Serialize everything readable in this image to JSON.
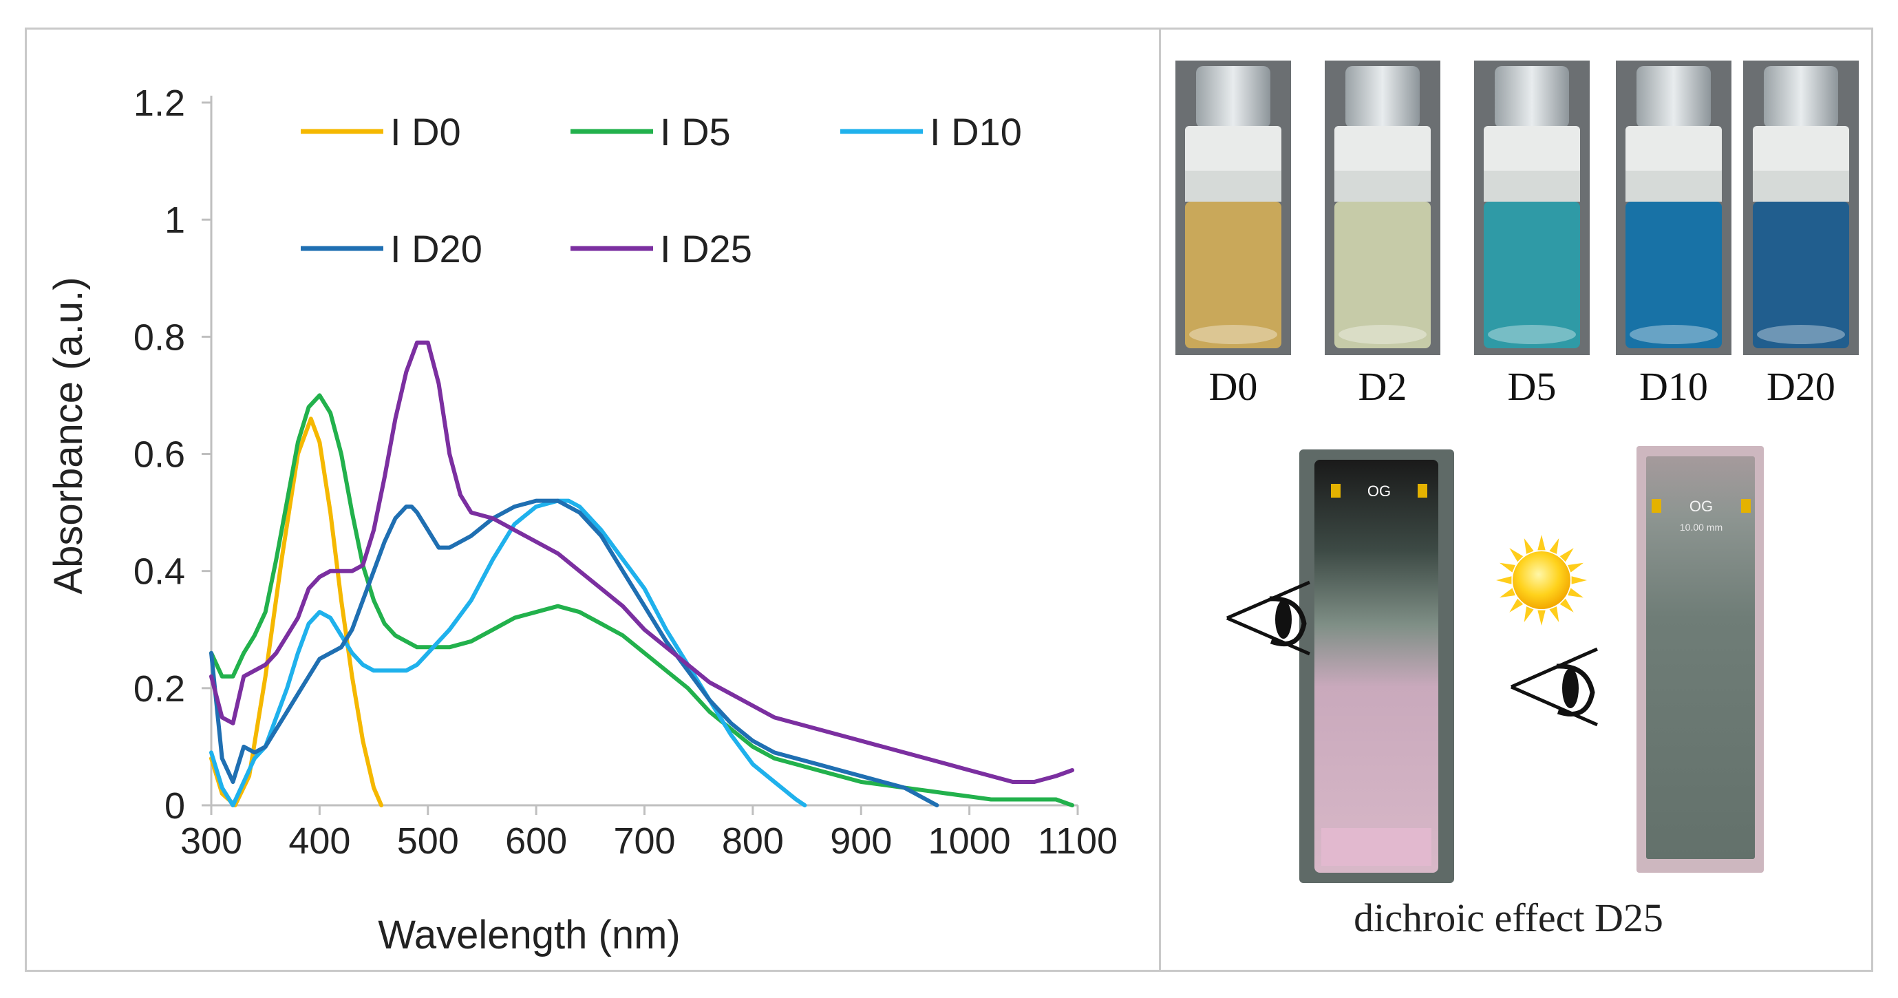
{
  "chart_data": {
    "type": "line",
    "title": "",
    "xlabel": "Wavelength (nm)",
    "ylabel": "Absorbance (a.u.)",
    "xlim": [
      300,
      1100
    ],
    "ylim": [
      0,
      1.2
    ],
    "x_ticks": [
      "300",
      "400",
      "500",
      "600",
      "700",
      "800",
      "900",
      "1000",
      "1100"
    ],
    "y_ticks": [
      "0",
      "0.2",
      "0.4",
      "0.6",
      "0.8",
      "1",
      "1.2"
    ],
    "grid": false,
    "legend": "inside, top",
    "series": [
      {
        "name": "I D0",
        "color": "#f5b800",
        "x": [
          300,
          310,
          322,
          335,
          350,
          365,
          380,
          392,
          400,
          410,
          420,
          430,
          440,
          450,
          457
        ],
        "y": [
          0.08,
          0.02,
          0.0,
          0.05,
          0.22,
          0.42,
          0.6,
          0.66,
          0.62,
          0.5,
          0.35,
          0.22,
          0.11,
          0.03,
          0.0
        ]
      },
      {
        "name": "I D5",
        "color": "#22b14c",
        "x": [
          300,
          310,
          320,
          330,
          340,
          350,
          360,
          370,
          380,
          390,
          400,
          410,
          420,
          430,
          440,
          450,
          460,
          470,
          480,
          490,
          500,
          520,
          540,
          560,
          580,
          600,
          620,
          640,
          660,
          680,
          700,
          720,
          740,
          760,
          780,
          800,
          820,
          840,
          860,
          880,
          900,
          920,
          940,
          960,
          980,
          1000,
          1020,
          1040,
          1060,
          1080,
          1095
        ],
        "y": [
          0.26,
          0.22,
          0.22,
          0.26,
          0.29,
          0.33,
          0.42,
          0.52,
          0.62,
          0.68,
          0.7,
          0.67,
          0.6,
          0.5,
          0.41,
          0.35,
          0.31,
          0.29,
          0.28,
          0.27,
          0.27,
          0.27,
          0.28,
          0.3,
          0.32,
          0.33,
          0.34,
          0.33,
          0.31,
          0.29,
          0.26,
          0.23,
          0.2,
          0.16,
          0.13,
          0.1,
          0.08,
          0.07,
          0.06,
          0.05,
          0.04,
          0.035,
          0.03,
          0.025,
          0.02,
          0.015,
          0.01,
          0.01,
          0.01,
          0.01,
          0.0
        ]
      },
      {
        "name": "I D10",
        "color": "#1fb1ec",
        "x": [
          300,
          310,
          320,
          330,
          340,
          350,
          360,
          370,
          380,
          390,
          400,
          410,
          420,
          430,
          440,
          450,
          460,
          470,
          480,
          490,
          500,
          520,
          540,
          560,
          580,
          600,
          620,
          630,
          640,
          660,
          680,
          700,
          720,
          740,
          760,
          780,
          800,
          820,
          840,
          848
        ],
        "y": [
          0.09,
          0.03,
          0.0,
          0.04,
          0.08,
          0.1,
          0.15,
          0.2,
          0.26,
          0.31,
          0.33,
          0.32,
          0.29,
          0.26,
          0.24,
          0.23,
          0.23,
          0.23,
          0.23,
          0.24,
          0.26,
          0.3,
          0.35,
          0.42,
          0.48,
          0.51,
          0.52,
          0.52,
          0.51,
          0.47,
          0.42,
          0.37,
          0.3,
          0.24,
          0.18,
          0.12,
          0.07,
          0.04,
          0.01,
          0.0
        ]
      },
      {
        "name": "I D20",
        "color": "#1f6fb2",
        "x": [
          300,
          310,
          320,
          330,
          340,
          350,
          360,
          370,
          380,
          390,
          400,
          410,
          420,
          430,
          440,
          450,
          460,
          470,
          480,
          485,
          490,
          500,
          510,
          520,
          530,
          540,
          560,
          580,
          600,
          620,
          640,
          660,
          680,
          700,
          720,
          740,
          760,
          780,
          800,
          820,
          840,
          860,
          880,
          900,
          920,
          940,
          960,
          970
        ],
        "y": [
          0.26,
          0.08,
          0.04,
          0.1,
          0.09,
          0.1,
          0.13,
          0.16,
          0.19,
          0.22,
          0.25,
          0.26,
          0.27,
          0.3,
          0.35,
          0.4,
          0.45,
          0.49,
          0.51,
          0.51,
          0.5,
          0.47,
          0.44,
          0.44,
          0.45,
          0.46,
          0.49,
          0.51,
          0.52,
          0.52,
          0.5,
          0.46,
          0.4,
          0.34,
          0.28,
          0.23,
          0.18,
          0.14,
          0.11,
          0.09,
          0.08,
          0.07,
          0.06,
          0.05,
          0.04,
          0.03,
          0.01,
          0.0
        ]
      },
      {
        "name": "I D25",
        "color": "#7b2fa0",
        "x": [
          300,
          310,
          320,
          330,
          340,
          350,
          360,
          370,
          380,
          390,
          400,
          410,
          420,
          430,
          440,
          450,
          460,
          470,
          480,
          490,
          500,
          510,
          520,
          530,
          540,
          560,
          580,
          600,
          620,
          640,
          660,
          680,
          700,
          720,
          740,
          760,
          780,
          800,
          820,
          840,
          860,
          880,
          900,
          920,
          940,
          960,
          980,
          1000,
          1020,
          1040,
          1060,
          1080,
          1095
        ],
        "y": [
          0.22,
          0.15,
          0.14,
          0.22,
          0.23,
          0.24,
          0.26,
          0.29,
          0.32,
          0.37,
          0.39,
          0.4,
          0.4,
          0.4,
          0.41,
          0.47,
          0.56,
          0.66,
          0.74,
          0.79,
          0.79,
          0.72,
          0.6,
          0.53,
          0.5,
          0.49,
          0.47,
          0.45,
          0.43,
          0.4,
          0.37,
          0.34,
          0.3,
          0.27,
          0.24,
          0.21,
          0.19,
          0.17,
          0.15,
          0.14,
          0.13,
          0.12,
          0.11,
          0.1,
          0.09,
          0.08,
          0.07,
          0.06,
          0.05,
          0.04,
          0.04,
          0.05,
          0.06
        ]
      }
    ]
  },
  "vials": {
    "labels": [
      "D0",
      "D2",
      "D5",
      "D10",
      "D20"
    ],
    "liquid_colors": [
      "#c9a85a",
      "#c6cba8",
      "#2f9aa6",
      "#1872a6",
      "#215e8e"
    ]
  },
  "cuvettes": {
    "caption": "dichroic effect D25",
    "logo_text": "OG",
    "scale_text": "10.00 mm",
    "sun_icon": "sun-icon",
    "eye_icon": "eye-icon"
  }
}
